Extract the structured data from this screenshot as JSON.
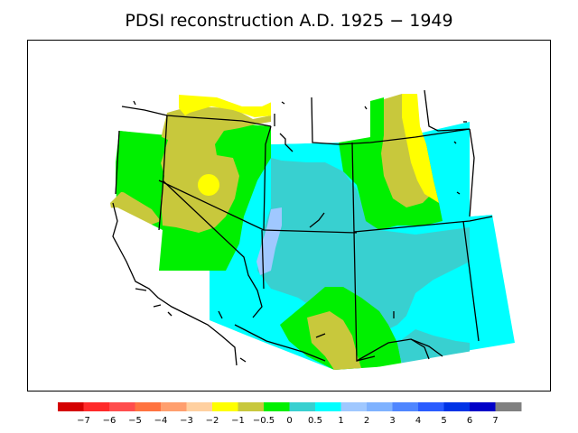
{
  "title": "PDSI reconstruction A.D. 1925 − 1949",
  "legend": {
    "colors": [
      "#d40000",
      "#ff2a2a",
      "#ff4d4d",
      "#ff7340",
      "#ff9f6e",
      "#ffd0a0",
      "#ffff00",
      "#c8c83c",
      "#00f000",
      "#38d0d0",
      "#00ffff",
      "#a0c8ff",
      "#7fb2ff",
      "#4f86ff",
      "#2a5cff",
      "#0033e6",
      "#0000c8",
      "#808080"
    ],
    "labels": [
      "−7",
      "−6",
      "−5",
      "−4",
      "−3",
      "−2",
      "−1",
      "−0.5",
      "0",
      "0.5",
      "1",
      "2",
      "3",
      "4",
      "5",
      "6",
      "7"
    ]
  }
}
